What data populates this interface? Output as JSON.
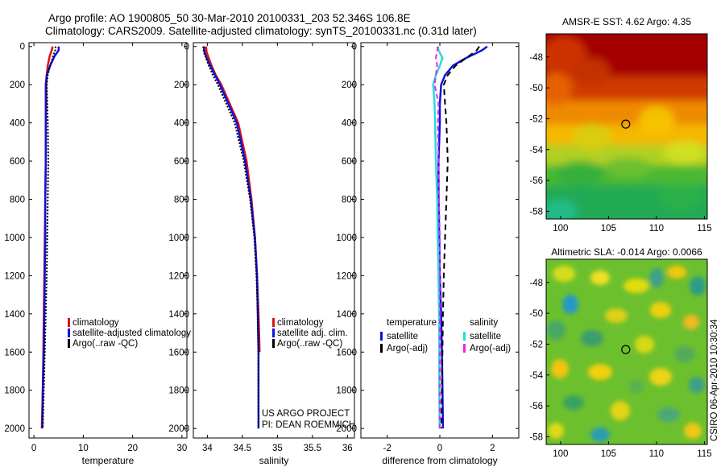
{
  "title_line1": "Argo profile: AO 1900805_50 30-Mar-2010 20100331_203 52.346S 106.8E",
  "title_line2": "Climatology: CARS2009. Satellite-adjusted climatology: synTS_20100331.nc (0.31d later)",
  "side_label": "CSIRO 06-Apr-2010 10:30:34",
  "project_line1": "US ARGO PROJECT",
  "project_line2": "PI: DEAN ROEMMICH",
  "colors": {
    "climatology": "#dd1111",
    "satellite": "#1111dd",
    "argo": "#000000",
    "sal_satellite": "#22dddd",
    "sal_argo": "#ee22ee"
  },
  "chart_data": [
    {
      "type": "line",
      "id": "temperature",
      "xlabel": "temperature",
      "ylabel": "",
      "xlim": [
        -1,
        31
      ],
      "ylim": [
        2050,
        -20
      ],
      "xticks": [
        0,
        10,
        20,
        30
      ],
      "yticks": [
        0,
        200,
        400,
        600,
        800,
        1000,
        1200,
        1400,
        1600,
        1800,
        2000
      ],
      "series": [
        {
          "name": "climatology",
          "color": "#dd1111",
          "dash": "",
          "x": [
            3.8,
            3.6,
            3.2,
            2.8,
            2.6,
            2.5,
            2.5,
            2.4,
            2.4,
            2.3,
            2.2,
            2.1,
            2.0,
            1.9,
            1.8,
            1.6
          ],
          "y": [
            0,
            20,
            50,
            100,
            150,
            200,
            300,
            400,
            600,
            800,
            1000,
            1200,
            1400,
            1600,
            1800,
            2000
          ]
        },
        {
          "name": "satellite-adjusted climatology",
          "color": "#1111dd",
          "dash": "",
          "x": [
            5.0,
            5.0,
            4.2,
            3.3,
            2.6,
            2.4,
            2.4,
            2.4,
            2.4,
            2.3,
            2.3,
            2.2,
            2.1,
            2.0,
            1.8,
            1.7
          ],
          "y": [
            0,
            20,
            50,
            100,
            150,
            200,
            300,
            400,
            600,
            800,
            1000,
            1200,
            1400,
            1600,
            1800,
            2000
          ]
        },
        {
          "name": "Argo(..raw -QC)",
          "color": "#000000",
          "dash": "2,2",
          "x": [
            4.4,
            4.3,
            3.9,
            3.3,
            2.8,
            2.6,
            2.7,
            2.8,
            2.9,
            2.8,
            2.7,
            2.6,
            2.4,
            2.2,
            2.0,
            1.8
          ],
          "y": [
            0,
            20,
            50,
            100,
            150,
            200,
            300,
            400,
            600,
            800,
            1000,
            1200,
            1400,
            1600,
            1800,
            2000
          ]
        }
      ],
      "legend": [
        "climatology",
        "satellite-adjusted climatology",
        "Argo(..raw -QC)"
      ]
    },
    {
      "type": "line",
      "id": "salinity",
      "xlabel": "salinity",
      "ylabel": "",
      "xlim": [
        33.8,
        36.1
      ],
      "ylim": [
        2050,
        -20
      ],
      "xticks": [
        34,
        34.5,
        35,
        35.5,
        36
      ],
      "xticklabels": [
        "34",
        "34.5",
        "35",
        "35.5",
        "36"
      ],
      "yticks": [
        0,
        200,
        400,
        600,
        800,
        1000,
        1200,
        1400,
        1600,
        1800,
        2000
      ],
      "series": [
        {
          "name": "climatology",
          "color": "#dd1111",
          "dash": "",
          "x": [
            33.98,
            33.99,
            34.02,
            34.06,
            34.12,
            34.2,
            34.32,
            34.44,
            34.56,
            34.63,
            34.68,
            34.71,
            34.73,
            34.74,
            34.745
          ],
          "y": [
            0,
            30,
            60,
            100,
            150,
            200,
            300,
            400,
            600,
            800,
            1000,
            1200,
            1400,
            1500,
            1600
          ]
        },
        {
          "name": "satellite adj. clim.",
          "color": "#1111dd",
          "dash": "",
          "x": [
            33.95,
            33.96,
            33.99,
            34.04,
            34.11,
            34.18,
            34.3,
            34.42,
            34.54,
            34.62,
            34.68,
            34.71,
            34.72,
            34.73,
            34.73,
            34.73,
            34.73
          ],
          "y": [
            0,
            30,
            60,
            100,
            150,
            200,
            300,
            400,
            600,
            800,
            1000,
            1200,
            1400,
            1600,
            1800,
            1900,
            2000
          ]
        },
        {
          "name": "Argo(..raw -QC)",
          "color": "#000000",
          "dash": "2,2",
          "x": [
            33.94,
            33.95,
            33.98,
            34.02,
            34.08,
            34.15,
            34.27,
            34.39,
            34.52,
            34.61,
            34.67,
            34.7,
            34.72,
            34.73,
            34.73,
            34.73
          ],
          "y": [
            0,
            30,
            60,
            100,
            150,
            200,
            300,
            400,
            600,
            800,
            1000,
            1200,
            1400,
            1600,
            1800,
            2000
          ]
        }
      ],
      "legend": [
        "climatology",
        "satellite adj. clim.",
        "Argo(..raw -QC)"
      ]
    },
    {
      "type": "line",
      "id": "difference",
      "xlabel": "difference from climatology",
      "ylabel": "",
      "xlim": [
        -3,
        3
      ],
      "ylim": [
        2050,
        -20
      ],
      "xticks": [
        -2,
        0,
        2
      ],
      "yticks": [
        0,
        200,
        400,
        600,
        800,
        1000,
        1200,
        1400,
        1600,
        1800,
        2000
      ],
      "series": [
        {
          "name": "temperature satellite",
          "color": "#1111dd",
          "dash": "",
          "x": [
            1.8,
            1.6,
            1.0,
            0.5,
            0.2,
            0.05,
            0.0,
            0.0,
            -0.05,
            -0.05,
            -0.02,
            0.0,
            0.05,
            0.08,
            0.1,
            0.12
          ],
          "y": [
            0,
            20,
            60,
            100,
            150,
            200,
            300,
            400,
            600,
            800,
            1000,
            1200,
            1400,
            1600,
            1800,
            2000
          ]
        },
        {
          "name": "temperature Argo(-adj)",
          "color": "#000000",
          "dash": "7,5",
          "x": [
            1.5,
            1.4,
            1.0,
            0.6,
            0.3,
            0.15,
            0.2,
            0.25,
            0.3,
            0.25,
            0.2,
            0.15,
            0.12,
            0.1,
            0.08,
            0.06
          ],
          "y": [
            0,
            20,
            60,
            100,
            150,
            200,
            300,
            400,
            600,
            800,
            1000,
            1200,
            1400,
            1600,
            1800,
            2000
          ]
        },
        {
          "name": "salinity satellite",
          "color": "#22dddd",
          "dash": "",
          "x": [
            -0.1,
            -0.05,
            0.1,
            0.0,
            -0.15,
            -0.25,
            -0.2,
            -0.18,
            -0.15,
            -0.1,
            -0.08,
            -0.05,
            -0.03,
            -0.02,
            -0.02,
            -0.01
          ],
          "y": [
            0,
            20,
            60,
            100,
            150,
            200,
            300,
            400,
            600,
            800,
            1000,
            1200,
            1400,
            1600,
            1800,
            2000
          ]
        },
        {
          "name": "salinity Argo(-adj)",
          "color": "#ee22ee",
          "dash": "6,4",
          "x": [
            -0.05,
            -0.1,
            -0.15,
            -0.1,
            -0.15,
            -0.2,
            -0.05,
            -0.08,
            -0.05,
            -0.03,
            0.0,
            0.0,
            0.0,
            0.0,
            0.0,
            0.0
          ],
          "y": [
            0,
            20,
            60,
            100,
            150,
            200,
            300,
            400,
            600,
            800,
            1000,
            1200,
            1400,
            1600,
            1800,
            2000
          ]
        }
      ],
      "legend_titles": [
        "temperature",
        "salinity"
      ],
      "legend": [
        "satellite",
        "Argo(-adj)",
        "satellite",
        "Argo(-adj)"
      ]
    },
    {
      "type": "heatmap",
      "id": "sst_map",
      "title": "AMSR-E SST: 4.62  Argo: 4.35",
      "xlim": [
        98.5,
        115.3
      ],
      "ylim": [
        -58.5,
        -46.5
      ],
      "xticks": [
        100,
        105,
        110,
        115
      ],
      "yticks": [
        -48,
        -50,
        -52,
        -54,
        -56,
        -58
      ],
      "marker": {
        "lon": 106.8,
        "lat": -52.35
      }
    },
    {
      "type": "heatmap",
      "id": "sla_map",
      "title": "Altimetric SLA: -0.014  Argo: 0.0066",
      "xlim": [
        98.5,
        115.3
      ],
      "ylim": [
        -58.5,
        -46.5
      ],
      "xticks": [
        100,
        105,
        110,
        115
      ],
      "yticks": [
        -48,
        -50,
        -52,
        -54,
        -56,
        -58
      ],
      "marker": {
        "lon": 106.8,
        "lat": -52.35
      }
    }
  ]
}
